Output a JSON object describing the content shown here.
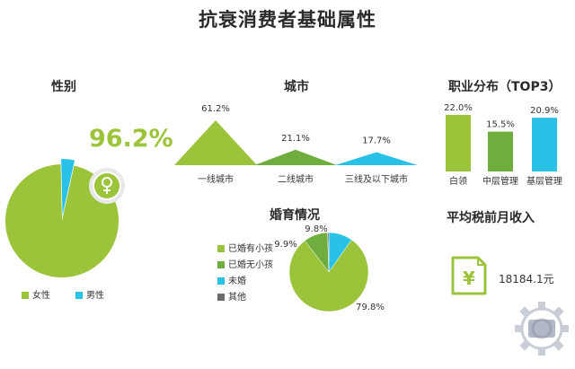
{
  "title": "抗衰消费者基础属性",
  "colors": {
    "green_main": "#9bc43a",
    "green_dark": "#6fae3e",
    "blue": "#29c2e6",
    "gray": "#6b6b6b",
    "text": "#333333"
  },
  "gender": {
    "title": "性别",
    "highlight": "96.2%",
    "legend": [
      {
        "label": "女性",
        "color": "#9bc43a"
      },
      {
        "label": "男性",
        "color": "#29c2e6"
      }
    ]
  },
  "city": {
    "title": "城市",
    "legend": ""
  },
  "occupation": {
    "title": "职业分布（TOP3）"
  },
  "marriage": {
    "title": "婚育情况",
    "legend": [
      {
        "label": "已婚有小孩",
        "color": "#9bc43a"
      },
      {
        "label": "已婚无小孩",
        "color": "#6fae3e"
      },
      {
        "label": "未婚",
        "color": "#29c2e6"
      },
      {
        "label": "其他",
        "color": "#6b6b6b"
      }
    ]
  },
  "income": {
    "title": "平均税前月收入",
    "value": "18184.1元",
    "icon": "yuan-wallet-icon"
  },
  "chart_data": [
    {
      "id": "gender",
      "type": "pie",
      "title": "性别",
      "slices": [
        {
          "label": "女性",
          "value": 96.2,
          "color": "#9bc43a"
        },
        {
          "label": "男性",
          "value": 3.8,
          "color": "#29c2e6"
        }
      ]
    },
    {
      "id": "city",
      "type": "area",
      "title": "城市",
      "categories": [
        "一线城市",
        "二线城市",
        "三线及以下城市"
      ],
      "values": [
        61.2,
        21.1,
        17.7
      ],
      "value_labels": [
        "61.2%",
        "21.1%",
        "17.7%"
      ],
      "colors": [
        "#9bc43a",
        "#6fae3e",
        "#29c2e6"
      ]
    },
    {
      "id": "occupation",
      "type": "bar",
      "title": "职业分布（TOP3）",
      "categories": [
        "白领",
        "中层管理",
        "基层管理"
      ],
      "values": [
        22.0,
        15.5,
        20.9
      ],
      "value_labels": [
        "22.0%",
        "15.5%",
        "20.9%"
      ],
      "colors": [
        "#9bc43a",
        "#6fae3e",
        "#29c2e6"
      ]
    },
    {
      "id": "marriage",
      "type": "pie",
      "title": "婚育情况",
      "slices": [
        {
          "label": "已婚有小孩",
          "value": 79.8,
          "display": "79.8%",
          "color": "#9bc43a"
        },
        {
          "label": "已婚无小孩",
          "value": 9.9,
          "display": "9.9%",
          "color": "#6fae3e"
        },
        {
          "label": "未婚",
          "value": 9.8,
          "display": "9.8%",
          "color": "#29c2e6"
        },
        {
          "label": "其他",
          "value": 0.5,
          "display": "",
          "color": "#6b6b6b"
        }
      ]
    }
  ]
}
